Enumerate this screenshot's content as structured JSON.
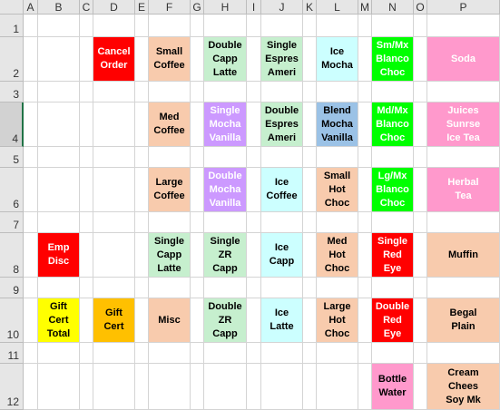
{
  "columns": [
    "A",
    "B",
    "C",
    "D",
    "E",
    "F",
    "G",
    "H",
    "I",
    "J",
    "K",
    "L",
    "M",
    "N",
    "O",
    "P"
  ],
  "rows": [
    "1",
    "2",
    "3",
    "4",
    "5",
    "6",
    "7",
    "8",
    "9",
    "10",
    "11",
    "12"
  ],
  "selected_row": "4",
  "colors": {
    "peach": "#f8cbad",
    "mint": "#c6efce",
    "lavender": "#cc99ff",
    "red": "#ff0000",
    "green": "#00ff00",
    "pink": "#ff99cc",
    "ice": "#ccffff",
    "blue": "#9bc2e6",
    "yellow": "#ffff00",
    "gold": "#ffc000"
  },
  "buttons": [
    {
      "name": "cancel-order-button",
      "col": "D",
      "row": "2",
      "text": "Cancel\nOrder",
      "bg": "red",
      "fg": "#ffffff"
    },
    {
      "name": "small-coffee-button",
      "col": "F",
      "row": "2",
      "text": "Small\nCoffee",
      "bg": "peach",
      "fg": "#000000"
    },
    {
      "name": "double-capp-latte-button",
      "col": "H",
      "row": "2",
      "text": "Double\nCapp\nLatte",
      "bg": "mint",
      "fg": "#000000"
    },
    {
      "name": "single-espres-ameri-button",
      "col": "J",
      "row": "2",
      "text": "Single\nEspres\nAmeri",
      "bg": "mint",
      "fg": "#000000"
    },
    {
      "name": "ice-mocha-button",
      "col": "L",
      "row": "2",
      "text": "Ice\nMocha",
      "bg": "ice",
      "fg": "#000000"
    },
    {
      "name": "sm-mx-blanco-choc-button",
      "col": "N",
      "row": "2",
      "text": "Sm/Mx\nBlanco\nChoc",
      "bg": "green",
      "fg": "#ffffff"
    },
    {
      "name": "soda-button",
      "col": "P",
      "row": "2",
      "text": "Soda",
      "bg": "pink",
      "fg": "#ffffff"
    },
    {
      "name": "med-coffee-button",
      "col": "F",
      "row": "4",
      "text": "Med\nCoffee",
      "bg": "peach",
      "fg": "#000000"
    },
    {
      "name": "single-mocha-vanilla-button",
      "col": "H",
      "row": "4",
      "text": "Single\nMocha\nVanilla",
      "bg": "lavender",
      "fg": "#ffffff"
    },
    {
      "name": "double-espres-ameri-button",
      "col": "J",
      "row": "4",
      "text": "Double\nEspres\nAmeri",
      "bg": "mint",
      "fg": "#000000"
    },
    {
      "name": "blend-mocha-vanilla-button",
      "col": "L",
      "row": "4",
      "text": "Blend\nMocha\nVanilla",
      "bg": "blue",
      "fg": "#000000"
    },
    {
      "name": "md-mx-blanco-choc-button",
      "col": "N",
      "row": "4",
      "text": "Md/Mx\nBlanco\nChoc",
      "bg": "green",
      "fg": "#ffffff"
    },
    {
      "name": "juices-sunrse-ice-tea-button",
      "col": "P",
      "row": "4",
      "text": "Juices\nSunrse\nIce Tea",
      "bg": "pink",
      "fg": "#ffffff"
    },
    {
      "name": "large-coffee-button",
      "col": "F",
      "row": "6",
      "text": "Large\nCoffee",
      "bg": "peach",
      "fg": "#000000"
    },
    {
      "name": "double-mocha-vanilla-button",
      "col": "H",
      "row": "6",
      "text": "Double\nMocha\nVanilla",
      "bg": "lavender",
      "fg": "#ffffff"
    },
    {
      "name": "ice-coffee-button",
      "col": "J",
      "row": "6",
      "text": "Ice\nCoffee",
      "bg": "ice",
      "fg": "#000000"
    },
    {
      "name": "small-hot-choc-button",
      "col": "L",
      "row": "6",
      "text": "Small\nHot\nChoc",
      "bg": "peach",
      "fg": "#000000"
    },
    {
      "name": "lg-mx-blanco-choc-button",
      "col": "N",
      "row": "6",
      "text": "Lg/Mx\nBlanco\nChoc",
      "bg": "green",
      "fg": "#ffffff"
    },
    {
      "name": "herbal-tea-button",
      "col": "P",
      "row": "6",
      "text": "Herbal\nTea",
      "bg": "pink",
      "fg": "#ffffff"
    },
    {
      "name": "emp-disc-button",
      "col": "B",
      "row": "8",
      "text": "Emp\nDisc",
      "bg": "red",
      "fg": "#ffffff"
    },
    {
      "name": "single-capp-latte-button",
      "col": "F",
      "row": "8",
      "text": "Single\nCapp\nLatte",
      "bg": "mint",
      "fg": "#000000"
    },
    {
      "name": "single-zr-capp-button",
      "col": "H",
      "row": "8",
      "text": "Single\nZR\nCapp",
      "bg": "mint",
      "fg": "#000000"
    },
    {
      "name": "ice-capp-button",
      "col": "J",
      "row": "8",
      "text": "Ice\nCapp",
      "bg": "ice",
      "fg": "#000000"
    },
    {
      "name": "med-hot-choc-button",
      "col": "L",
      "row": "8",
      "text": "Med\nHot\nChoc",
      "bg": "peach",
      "fg": "#000000"
    },
    {
      "name": "single-red-eye-button",
      "col": "N",
      "row": "8",
      "text": "Single\nRed\nEye",
      "bg": "red",
      "fg": "#ffffff"
    },
    {
      "name": "muffin-button",
      "col": "P",
      "row": "8",
      "text": "Muffin",
      "bg": "peach",
      "fg": "#000000"
    },
    {
      "name": "gift-cert-total-button",
      "col": "B",
      "row": "10",
      "text": "Gift\nCert\nTotal",
      "bg": "yellow",
      "fg": "#000000"
    },
    {
      "name": "gift-cert-button",
      "col": "D",
      "row": "10",
      "text": "Gift\nCert",
      "bg": "gold",
      "fg": "#000000"
    },
    {
      "name": "misc-button",
      "col": "F",
      "row": "10",
      "text": "Misc",
      "bg": "peach",
      "fg": "#000000"
    },
    {
      "name": "double-zr-capp-button",
      "col": "H",
      "row": "10",
      "text": "Double\nZR\nCapp",
      "bg": "mint",
      "fg": "#000000"
    },
    {
      "name": "ice-latte-button",
      "col": "J",
      "row": "10",
      "text": "Ice\nLatte",
      "bg": "ice",
      "fg": "#000000"
    },
    {
      "name": "large-hot-choc-button",
      "col": "L",
      "row": "10",
      "text": "Large\nHot\nChoc",
      "bg": "peach",
      "fg": "#000000"
    },
    {
      "name": "double-red-eye-button",
      "col": "N",
      "row": "10",
      "text": "Double\nRed\nEye",
      "bg": "red",
      "fg": "#ffffff"
    },
    {
      "name": "begal-plain-button",
      "col": "P",
      "row": "10",
      "text": "Begal\nPlain",
      "bg": "peach",
      "fg": "#000000"
    },
    {
      "name": "bottle-water-button",
      "col": "N",
      "row": "12",
      "text": "Bottle\nWater",
      "bg": "pink",
      "fg": "#000000"
    },
    {
      "name": "cream-chees-soy-mk-button",
      "col": "P",
      "row": "12",
      "text": "Cream\nChees\nSoy Mk",
      "bg": "peach",
      "fg": "#000000"
    }
  ]
}
